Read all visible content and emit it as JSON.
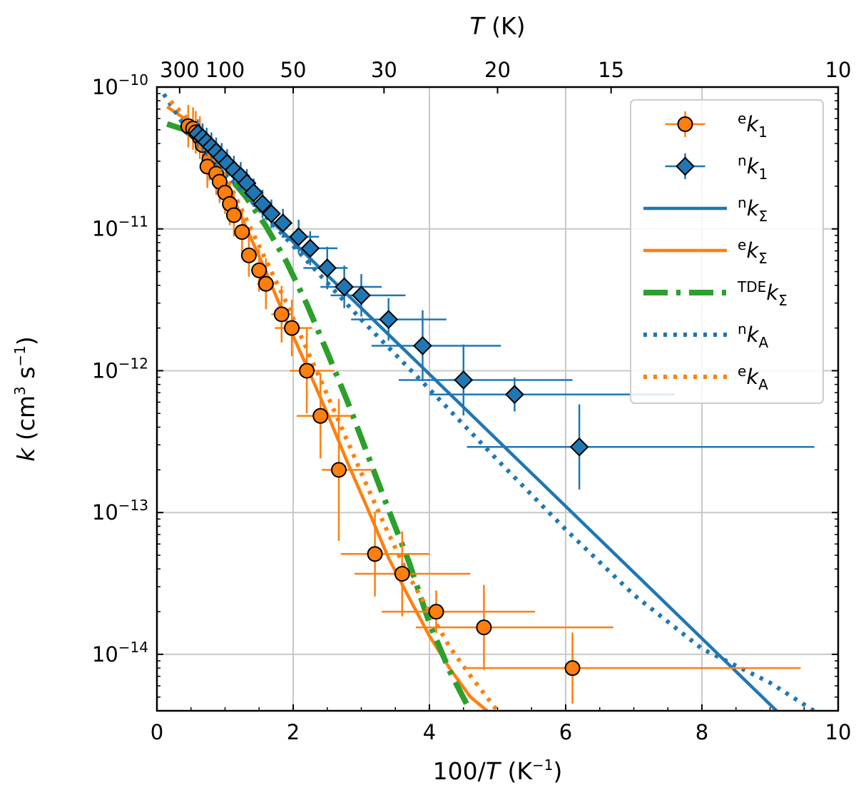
{
  "chart_data": {
    "type": "scatter",
    "x_axis": {
      "label_prefix": "100/",
      "label_var": "T",
      "label_unit": "(K",
      "label_unit_exp": "−1",
      "label_unit_end": ")",
      "lim": [
        0,
        10
      ],
      "ticks": [
        0,
        2,
        4,
        6,
        8,
        10
      ],
      "tick_labels": [
        "0",
        "2",
        "4",
        "6",
        "8",
        "10"
      ]
    },
    "top_axis": {
      "label_var": "T",
      "label_unit": "(K)",
      "temps_K": [
        300,
        100,
        50,
        30,
        20,
        15,
        10
      ],
      "tick_labels": [
        "300",
        "100",
        "50",
        "30",
        "20",
        "15",
        "10"
      ]
    },
    "y_axis": {
      "label_var": "k",
      "label_unit_open": "(cm",
      "label_unit_exp1": "3",
      "label_unit_mid": "s",
      "label_unit_exp2": "−1",
      "label_unit_close": ")",
      "scale": "log",
      "lim": [
        4e-15,
        1e-10
      ],
      "major_exponents": [
        -10,
        -11,
        -12,
        -13,
        -14
      ],
      "tick_base": "10",
      "tick_exponent_labels": [
        "−10",
        "−11",
        "−12",
        "−13",
        "−14"
      ]
    },
    "grid": true,
    "legend_position": "top-right",
    "series": [
      {
        "name": "e_k1",
        "label_sup": "e",
        "label_main": "k",
        "label_sub": "1",
        "kind": "points",
        "marker": "circle",
        "color": "#ff7f0e",
        "points": [
          [
            0.46,
            5.3e-11,
            0.05,
            0.05,
            0.15,
            0.15
          ],
          [
            0.53,
            5.1e-11,
            0.05,
            0.05,
            0.15,
            0.15
          ],
          [
            0.57,
            4.8e-11,
            0.05,
            0.05,
            0.15,
            0.15
          ],
          [
            0.63,
            4.4e-11,
            0.05,
            0.05,
            0.15,
            0.15
          ],
          [
            0.67,
            3.9e-11,
            0.05,
            0.05,
            0.15,
            0.15
          ],
          [
            0.77,
            3.1e-11,
            0.06,
            0.06,
            0.15,
            0.15
          ],
          [
            0.74,
            2.75e-11,
            0.06,
            0.06,
            0.15,
            0.15
          ],
          [
            0.87,
            2.45e-11,
            0.07,
            0.07,
            0.15,
            0.15
          ],
          [
            0.92,
            2.15e-11,
            0.07,
            0.07,
            0.15,
            0.15
          ],
          [
            1.0,
            1.8e-11,
            0.08,
            0.08,
            0.15,
            0.15
          ],
          [
            1.07,
            1.5e-11,
            0.08,
            0.08,
            0.15,
            0.15
          ],
          [
            1.13,
            1.25e-11,
            0.09,
            0.09,
            0.15,
            0.15
          ],
          [
            1.25,
            9.5e-12,
            0.1,
            0.1,
            0.15,
            0.15
          ],
          [
            1.35,
            6.5e-12,
            0.1,
            0.1,
            0.15,
            0.15
          ],
          [
            1.5,
            5.1e-12,
            0.12,
            0.12,
            0.15,
            0.15
          ],
          [
            1.6,
            4.1e-12,
            0.13,
            0.13,
            0.18,
            0.18
          ],
          [
            1.83,
            2.5e-12,
            0.15,
            0.15,
            0.2,
            0.2
          ],
          [
            1.98,
            2e-12,
            0.25,
            0.3,
            0.2,
            0.2
          ],
          [
            2.2,
            1e-12,
            0.25,
            0.4,
            0.3,
            0.3
          ],
          [
            2.4,
            4.8e-13,
            0.35,
            0.45,
            0.3,
            0.3
          ],
          [
            2.67,
            2e-13,
            0.25,
            0.5,
            0.5,
            0.5
          ],
          [
            3.2,
            5.1e-14,
            0.5,
            0.8,
            0.3,
            0.3
          ],
          [
            3.6,
            3.7e-14,
            0.7,
            1.0,
            0.3,
            0.3
          ],
          [
            4.1,
            2e-14,
            0.8,
            1.45,
            0.15,
            0.15
          ],
          [
            4.8,
            1.55e-14,
            1.0,
            1.9,
            0.3,
            0.3
          ],
          [
            6.1,
            8e-15,
            1.55,
            3.35,
            0.25,
            0.25
          ]
        ]
      },
      {
        "name": "n_k1",
        "label_sup": "n",
        "label_main": "k",
        "label_sub": "1",
        "kind": "points",
        "marker": "diamond",
        "color": "#1f77b4",
        "points": [
          [
            0.6,
            4.7e-11,
            0.04,
            0.04,
            0.1,
            0.1
          ],
          [
            0.67,
            4.4e-11,
            0.04,
            0.04,
            0.1,
            0.1
          ],
          [
            0.73,
            4.1e-11,
            0.04,
            0.04,
            0.1,
            0.1
          ],
          [
            0.8,
            3.8e-11,
            0.05,
            0.05,
            0.1,
            0.1
          ],
          [
            0.87,
            3.5e-11,
            0.05,
            0.05,
            0.1,
            0.1
          ],
          [
            0.95,
            3.2e-11,
            0.05,
            0.05,
            0.1,
            0.1
          ],
          [
            1.03,
            2.9e-11,
            0.06,
            0.06,
            0.1,
            0.1
          ],
          [
            1.13,
            2.6e-11,
            0.06,
            0.06,
            0.1,
            0.1
          ],
          [
            1.23,
            2.35e-11,
            0.07,
            0.07,
            0.1,
            0.1
          ],
          [
            1.32,
            2.1e-11,
            0.07,
            0.07,
            0.1,
            0.1
          ],
          [
            1.42,
            1.8e-11,
            0.08,
            0.08,
            0.1,
            0.1
          ],
          [
            1.55,
            1.5e-11,
            0.08,
            0.08,
            0.1,
            0.1
          ],
          [
            1.68,
            1.28e-11,
            0.1,
            0.1,
            0.1,
            0.1
          ],
          [
            1.85,
            1.1e-11,
            0.12,
            0.12,
            0.1,
            0.1
          ],
          [
            2.08,
            8.8e-12,
            0.25,
            0.3,
            0.12,
            0.12
          ],
          [
            2.25,
            7.3e-12,
            0.25,
            0.4,
            0.12,
            0.12
          ],
          [
            2.5,
            5.3e-12,
            0.35,
            0.3,
            0.15,
            0.15
          ],
          [
            2.75,
            3.9e-12,
            0.35,
            0.55,
            0.15,
            0.15
          ],
          [
            3.0,
            3.4e-12,
            0.45,
            0.65,
            0.15,
            0.15
          ],
          [
            3.4,
            2.3e-12,
            0.55,
            0.85,
            0.15,
            0.15
          ],
          [
            3.9,
            1.5e-12,
            0.75,
            1.15,
            0.25,
            0.25
          ],
          [
            4.5,
            8.6e-13,
            0.95,
            1.6,
            0.25,
            0.25
          ],
          [
            5.25,
            6.8e-13,
            1.25,
            2.35,
            0.12,
            0.12
          ],
          [
            6.2,
            2.9e-13,
            1.65,
            3.45,
            0.3,
            0.3
          ]
        ]
      },
      {
        "name": "n_ksigma",
        "label_sup": "n",
        "label_main": "k",
        "label_sub": "Σ",
        "kind": "line",
        "style": "solid",
        "color": "#1f77b4",
        "x": [
          1.2,
          9.1
        ],
        "log10y": [
          -10.72,
          -14.4
        ]
      },
      {
        "name": "e_ksigma",
        "label_sup": "e",
        "label_main": "k",
        "label_sub": "Σ",
        "kind": "line",
        "style": "solid",
        "color": "#ff7f0e",
        "x": [
          0.15,
          0.4,
          0.7,
          1.0,
          1.3,
          1.6,
          1.9,
          2.2,
          2.5,
          2.8,
          3.1,
          3.4,
          3.7,
          4.0,
          4.3,
          4.6,
          4.85
        ],
        "log10y": [
          -10.14,
          -10.22,
          -10.38,
          -10.65,
          -10.98,
          -11.3,
          -11.65,
          -11.97,
          -12.3,
          -12.65,
          -12.98,
          -13.32,
          -13.6,
          -13.87,
          -14.1,
          -14.3,
          -14.4
        ]
      },
      {
        "name": "tde_ksigma",
        "label_sup": "TDE",
        "label_main": "k",
        "label_sub": "Σ",
        "kind": "line",
        "style": "dashdot",
        "color": "#2ca02c",
        "x": [
          0.15,
          0.4,
          0.7,
          1.0,
          1.3,
          1.6,
          1.9,
          2.2,
          2.5,
          2.8,
          3.1,
          3.4,
          3.7,
          4.0,
          4.3,
          4.6
        ],
        "log10y": [
          -10.26,
          -10.3,
          -10.43,
          -10.6,
          -10.77,
          -10.98,
          -11.23,
          -11.53,
          -11.87,
          -12.22,
          -12.6,
          -12.98,
          -13.35,
          -13.78,
          -14.12,
          -14.4
        ]
      },
      {
        "name": "n_kA",
        "label_sup": "n",
        "label_main": "k",
        "label_sub": "A",
        "kind": "line",
        "style": "dotted",
        "color": "#1f77b4",
        "x": [
          0.1,
          0.4,
          0.8,
          1.2,
          2.0,
          3.0,
          4.0,
          5.0,
          6.0,
          7.0,
          8.0,
          9.0,
          9.65
        ],
        "log10y": [
          -10.05,
          -10.27,
          -10.5,
          -10.71,
          -11.12,
          -11.64,
          -12.13,
          -12.63,
          -13.12,
          -13.58,
          -13.96,
          -14.2,
          -14.4
        ]
      },
      {
        "name": "e_kA",
        "label_sup": "e",
        "label_main": "k",
        "label_sub": "A",
        "kind": "line",
        "style": "dotted",
        "color": "#ff7f0e",
        "x": [
          0.2,
          0.4,
          0.7,
          1.0,
          1.3,
          1.6,
          1.9,
          2.2,
          2.5,
          2.8,
          3.1,
          3.4,
          3.7,
          4.0,
          4.3,
          4.6,
          5.0
        ],
        "log10y": [
          -10.1,
          -10.2,
          -10.36,
          -10.62,
          -10.92,
          -11.22,
          -11.52,
          -11.85,
          -12.17,
          -12.5,
          -12.83,
          -13.15,
          -13.45,
          -13.7,
          -13.95,
          -14.15,
          -14.4
        ]
      }
    ]
  }
}
